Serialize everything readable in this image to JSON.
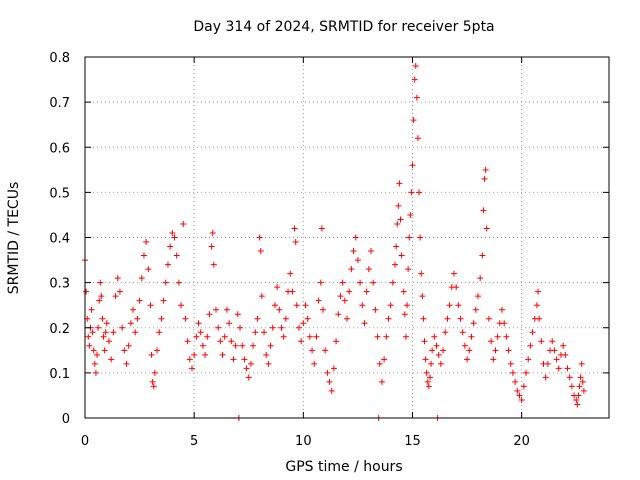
{
  "chart_data": {
    "type": "scatter",
    "title": "Day 314 of 2024, SRMTID for receiver 5pta",
    "xlabel": "GPS time / hours",
    "ylabel": "SRMTID / TECUs",
    "xlim": [
      0,
      24
    ],
    "ylim": [
      0,
      0.8
    ],
    "xticks": [
      "0",
      "5",
      "10",
      "15",
      "20"
    ],
    "yticks": [
      "0",
      "0.1",
      "0.2",
      "0.3",
      "0.4",
      "0.5",
      "0.6",
      "0.7",
      "0.8"
    ],
    "grid": true,
    "marker": "+",
    "color": "#ff0000",
    "series": [
      {
        "name": "5pta",
        "points": [
          [
            0.0,
            0.35
          ],
          [
            0.05,
            0.28
          ],
          [
            0.1,
            0.22
          ],
          [
            0.15,
            0.18
          ],
          [
            0.2,
            0.16
          ],
          [
            0.25,
            0.2
          ],
          [
            0.3,
            0.24
          ],
          [
            0.35,
            0.19
          ],
          [
            0.4,
            0.15
          ],
          [
            0.45,
            0.12
          ],
          [
            0.5,
            0.1
          ],
          [
            0.55,
            0.14
          ],
          [
            0.6,
            0.2
          ],
          [
            0.65,
            0.26
          ],
          [
            0.7,
            0.3
          ],
          [
            0.75,
            0.27
          ],
          [
            0.8,
            0.22
          ],
          [
            0.85,
            0.18
          ],
          [
            0.9,
            0.15
          ],
          [
            0.95,
            0.19
          ],
          [
            1.0,
            0.21
          ],
          [
            1.1,
            0.17
          ],
          [
            1.2,
            0.13
          ],
          [
            1.3,
            0.19
          ],
          [
            1.4,
            0.27
          ],
          [
            1.5,
            0.31
          ],
          [
            1.6,
            0.28
          ],
          [
            1.7,
            0.2
          ],
          [
            1.8,
            0.15
          ],
          [
            1.9,
            0.12
          ],
          [
            2.0,
            0.16
          ],
          [
            2.1,
            0.21
          ],
          [
            2.2,
            0.24
          ],
          [
            2.3,
            0.19
          ],
          [
            2.4,
            0.22
          ],
          [
            2.5,
            0.26
          ],
          [
            2.6,
            0.31
          ],
          [
            2.7,
            0.36
          ],
          [
            2.8,
            0.39
          ],
          [
            2.9,
            0.33
          ],
          [
            3.0,
            0.25
          ],
          [
            3.05,
            0.14
          ],
          [
            3.1,
            0.08
          ],
          [
            3.15,
            0.07
          ],
          [
            3.2,
            0.1
          ],
          [
            3.3,
            0.15
          ],
          [
            3.4,
            0.19
          ],
          [
            3.5,
            0.22
          ],
          [
            3.6,
            0.26
          ],
          [
            3.7,
            0.3
          ],
          [
            3.8,
            0.34
          ],
          [
            3.9,
            0.38
          ],
          [
            4.0,
            0.41
          ],
          [
            4.1,
            0.4
          ],
          [
            4.2,
            0.36
          ],
          [
            4.3,
            0.3
          ],
          [
            4.4,
            0.25
          ],
          [
            4.5,
            0.43
          ],
          [
            4.6,
            0.22
          ],
          [
            4.7,
            0.17
          ],
          [
            4.8,
            0.13
          ],
          [
            4.9,
            0.11
          ],
          [
            5.0,
            0.14
          ],
          [
            5.1,
            0.18
          ],
          [
            5.2,
            0.21
          ],
          [
            5.3,
            0.19
          ],
          [
            5.4,
            0.16
          ],
          [
            5.5,
            0.14
          ],
          [
            5.6,
            0.18
          ],
          [
            5.7,
            0.23
          ],
          [
            5.8,
            0.38
          ],
          [
            5.85,
            0.41
          ],
          [
            5.9,
            0.34
          ],
          [
            6.0,
            0.24
          ],
          [
            6.1,
            0.2
          ],
          [
            6.2,
            0.17
          ],
          [
            6.3,
            0.14
          ],
          [
            6.4,
            0.18
          ],
          [
            6.5,
            0.24
          ],
          [
            6.6,
            0.21
          ],
          [
            6.7,
            0.17
          ],
          [
            6.8,
            0.13
          ],
          [
            6.9,
            0.16
          ],
          [
            7.0,
            0.23
          ],
          [
            7.1,
            0.2
          ],
          [
            7.2,
            0.16
          ],
          [
            7.3,
            0.13
          ],
          [
            7.4,
            0.11
          ],
          [
            7.5,
            0.09
          ],
          [
            7.6,
            0.12
          ],
          [
            7.7,
            0.16
          ],
          [
            7.8,
            0.19
          ],
          [
            7.9,
            0.22
          ],
          [
            8.0,
            0.4
          ],
          [
            8.05,
            0.37
          ],
          [
            8.1,
            0.27
          ],
          [
            8.2,
            0.19
          ],
          [
            8.3,
            0.14
          ],
          [
            8.4,
            0.12
          ],
          [
            8.5,
            0.16
          ],
          [
            8.6,
            0.2
          ],
          [
            8.7,
            0.25
          ],
          [
            8.8,
            0.29
          ],
          [
            8.9,
            0.24
          ],
          [
            9.0,
            0.2
          ],
          [
            9.1,
            0.18
          ],
          [
            9.2,
            0.22
          ],
          [
            9.3,
            0.28
          ],
          [
            9.4,
            0.32
          ],
          [
            9.5,
            0.28
          ],
          [
            9.6,
            0.42
          ],
          [
            9.65,
            0.39
          ],
          [
            9.7,
            0.25
          ],
          [
            9.8,
            0.2
          ],
          [
            9.9,
            0.17
          ],
          [
            10.0,
            0.21
          ],
          [
            10.1,
            0.25
          ],
          [
            10.2,
            0.22
          ],
          [
            10.3,
            0.18
          ],
          [
            10.4,
            0.15
          ],
          [
            10.5,
            0.12
          ],
          [
            10.6,
            0.18
          ],
          [
            10.7,
            0.26
          ],
          [
            10.8,
            0.3
          ],
          [
            10.85,
            0.42
          ],
          [
            10.9,
            0.24
          ],
          [
            11.0,
            0.15
          ],
          [
            11.1,
            0.1
          ],
          [
            11.2,
            0.08
          ],
          [
            11.3,
            0.06
          ],
          [
            11.4,
            0.11
          ],
          [
            11.5,
            0.17
          ],
          [
            11.6,
            0.23
          ],
          [
            11.7,
            0.27
          ],
          [
            11.8,
            0.3
          ],
          [
            11.9,
            0.26
          ],
          [
            12.0,
            0.22
          ],
          [
            12.1,
            0.28
          ],
          [
            12.2,
            0.33
          ],
          [
            12.3,
            0.37
          ],
          [
            12.4,
            0.4
          ],
          [
            12.5,
            0.35
          ],
          [
            12.6,
            0.3
          ],
          [
            12.7,
            0.25
          ],
          [
            12.8,
            0.21
          ],
          [
            12.9,
            0.28
          ],
          [
            13.0,
            0.33
          ],
          [
            13.1,
            0.37
          ],
          [
            13.2,
            0.3
          ],
          [
            13.3,
            0.24
          ],
          [
            13.4,
            0.18
          ],
          [
            13.5,
            0.12
          ],
          [
            13.6,
            0.08
          ],
          [
            13.7,
            0.13
          ],
          [
            13.8,
            0.18
          ],
          [
            13.9,
            0.22
          ],
          [
            14.0,
            0.25
          ],
          [
            14.1,
            0.3
          ],
          [
            14.2,
            0.34
          ],
          [
            14.25,
            0.38
          ],
          [
            14.3,
            0.43
          ],
          [
            14.35,
            0.47
          ],
          [
            14.4,
            0.52
          ],
          [
            14.45,
            0.44
          ],
          [
            14.5,
            0.36
          ],
          [
            14.6,
            0.28
          ],
          [
            14.65,
            0.23
          ],
          [
            14.7,
            0.18
          ],
          [
            14.75,
            0.25
          ],
          [
            14.8,
            0.33
          ],
          [
            14.85,
            0.4
          ],
          [
            14.9,
            0.45
          ],
          [
            14.95,
            0.5
          ],
          [
            15.0,
            0.56
          ],
          [
            15.05,
            0.66
          ],
          [
            15.1,
            0.75
          ],
          [
            15.15,
            0.78
          ],
          [
            15.2,
            0.71
          ],
          [
            15.25,
            0.62
          ],
          [
            15.3,
            0.5
          ],
          [
            15.35,
            0.4
          ],
          [
            15.4,
            0.32
          ],
          [
            15.45,
            0.27
          ],
          [
            15.5,
            0.22
          ],
          [
            15.55,
            0.17
          ],
          [
            15.6,
            0.13
          ],
          [
            15.65,
            0.1
          ],
          [
            15.7,
            0.08
          ],
          [
            15.75,
            0.07
          ],
          [
            15.8,
            0.09
          ],
          [
            15.85,
            0.12
          ],
          [
            15.9,
            0.15
          ],
          [
            16.0,
            0.18
          ],
          [
            16.1,
            0.16
          ],
          [
            16.2,
            0.14
          ],
          [
            16.3,
            0.12
          ],
          [
            16.4,
            0.15
          ],
          [
            16.5,
            0.19
          ],
          [
            16.6,
            0.22
          ],
          [
            16.7,
            0.25
          ],
          [
            16.8,
            0.29
          ],
          [
            16.9,
            0.32
          ],
          [
            17.0,
            0.29
          ],
          [
            17.1,
            0.25
          ],
          [
            17.2,
            0.22
          ],
          [
            17.3,
            0.19
          ],
          [
            17.4,
            0.16
          ],
          [
            17.5,
            0.13
          ],
          [
            17.6,
            0.15
          ],
          [
            17.7,
            0.18
          ],
          [
            17.8,
            0.21
          ],
          [
            17.9,
            0.24
          ],
          [
            18.0,
            0.27
          ],
          [
            18.1,
            0.31
          ],
          [
            18.2,
            0.36
          ],
          [
            18.25,
            0.46
          ],
          [
            18.3,
            0.53
          ],
          [
            18.35,
            0.55
          ],
          [
            18.4,
            0.42
          ],
          [
            18.5,
            0.22
          ],
          [
            18.6,
            0.17
          ],
          [
            18.7,
            0.13
          ],
          [
            18.8,
            0.15
          ],
          [
            18.9,
            0.18
          ],
          [
            19.0,
            0.21
          ],
          [
            19.1,
            0.24
          ],
          [
            19.2,
            0.21
          ],
          [
            19.3,
            0.18
          ],
          [
            19.4,
            0.15
          ],
          [
            19.5,
            0.12
          ],
          [
            19.6,
            0.1
          ],
          [
            19.7,
            0.08
          ],
          [
            19.8,
            0.06
          ],
          [
            19.9,
            0.05
          ],
          [
            20.0,
            0.04
          ],
          [
            20.1,
            0.07
          ],
          [
            20.2,
            0.1
          ],
          [
            20.3,
            0.13
          ],
          [
            20.4,
            0.16
          ],
          [
            20.5,
            0.19
          ],
          [
            20.6,
            0.22
          ],
          [
            20.7,
            0.25
          ],
          [
            20.75,
            0.28
          ],
          [
            20.8,
            0.22
          ],
          [
            20.9,
            0.17
          ],
          [
            21.0,
            0.12
          ],
          [
            21.1,
            0.09
          ],
          [
            21.2,
            0.12
          ],
          [
            21.3,
            0.15
          ],
          [
            21.4,
            0.17
          ],
          [
            21.5,
            0.15
          ],
          [
            21.6,
            0.13
          ],
          [
            21.7,
            0.11
          ],
          [
            21.8,
            0.14
          ],
          [
            21.9,
            0.16
          ],
          [
            22.0,
            0.14
          ],
          [
            22.1,
            0.11
          ],
          [
            22.2,
            0.09
          ],
          [
            22.3,
            0.07
          ],
          [
            22.4,
            0.05
          ],
          [
            22.5,
            0.04
          ],
          [
            22.55,
            0.03
          ],
          [
            22.6,
            0.05
          ],
          [
            22.65,
            0.07
          ],
          [
            22.7,
            0.09
          ],
          [
            22.75,
            0.12
          ],
          [
            22.8,
            0.08
          ],
          [
            22.85,
            0.06
          ],
          [
            7.05,
            0.0
          ],
          [
            13.45,
            0.0
          ],
          [
            16.15,
            0.0
          ]
        ]
      }
    ]
  }
}
